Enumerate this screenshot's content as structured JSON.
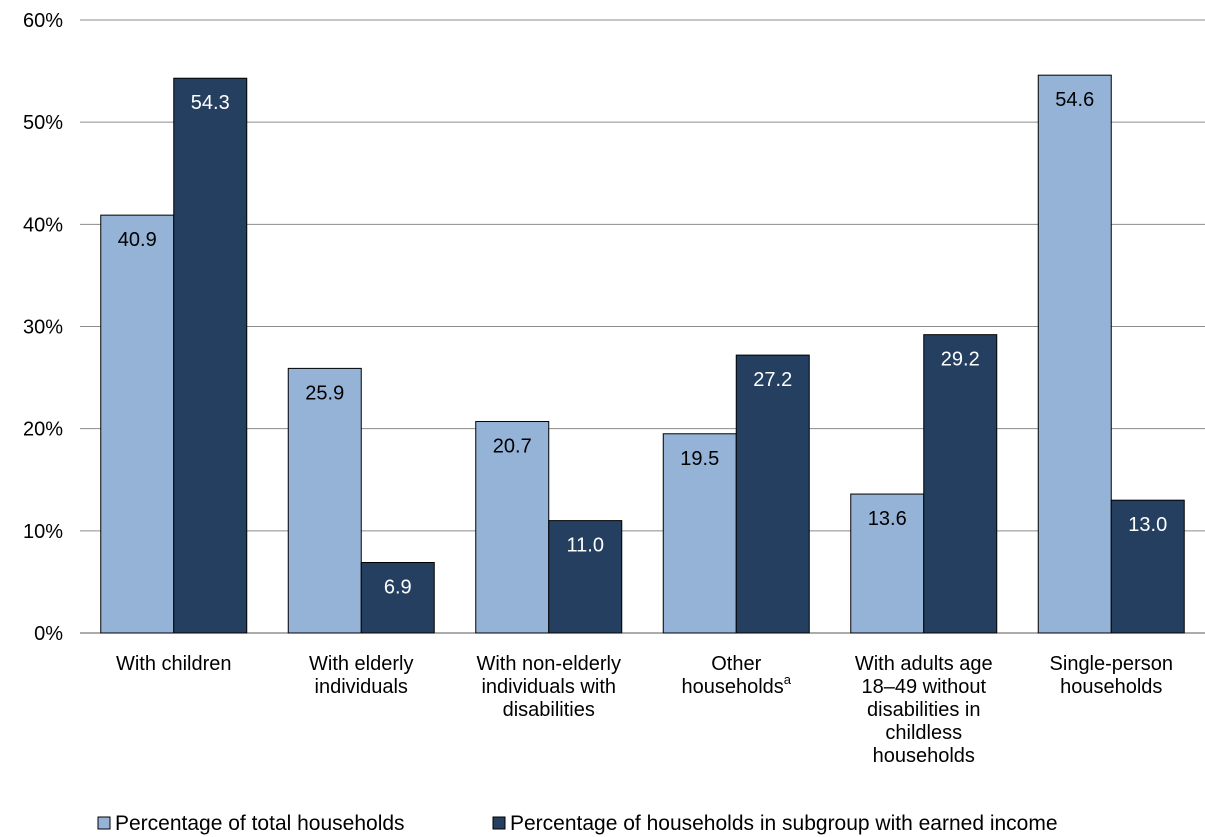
{
  "chart_data": {
    "type": "bar",
    "categories": [
      [
        "With children"
      ],
      [
        "With elderly",
        "individuals"
      ],
      [
        "With non-elderly",
        "individuals with",
        "disabilities"
      ],
      [
        "Other",
        "households"
      ],
      [
        "With adults age",
        "18–49 without",
        "disabilities in",
        "childless",
        "households"
      ],
      [
        "Single-person",
        "households"
      ]
    ],
    "category_superscripts": [
      "",
      "",
      "",
      "a",
      "",
      ""
    ],
    "series": [
      {
        "name": "Percentage of total households",
        "values": [
          40.9,
          25.9,
          20.7,
          19.5,
          13.6,
          54.6
        ],
        "color": "#95b3d7",
        "label_color": "#000000"
      },
      {
        "name": "Percentage of households in subgroup with earned income",
        "values": [
          54.3,
          6.9,
          11.0,
          27.2,
          29.2,
          13.0
        ],
        "color": "#243f60",
        "label_color": "#ffffff"
      }
    ],
    "value_labels_decimals": 1,
    "ylim": [
      0,
      60
    ],
    "yticks": [
      0,
      10,
      20,
      30,
      40,
      50,
      60
    ],
    "ytick_labels": [
      "0%",
      "10%",
      "20%",
      "30%",
      "40%",
      "50%",
      "60%"
    ],
    "grid": true,
    "legend_position": "bottom",
    "title": "",
    "xlabel": "",
    "ylabel": ""
  }
}
